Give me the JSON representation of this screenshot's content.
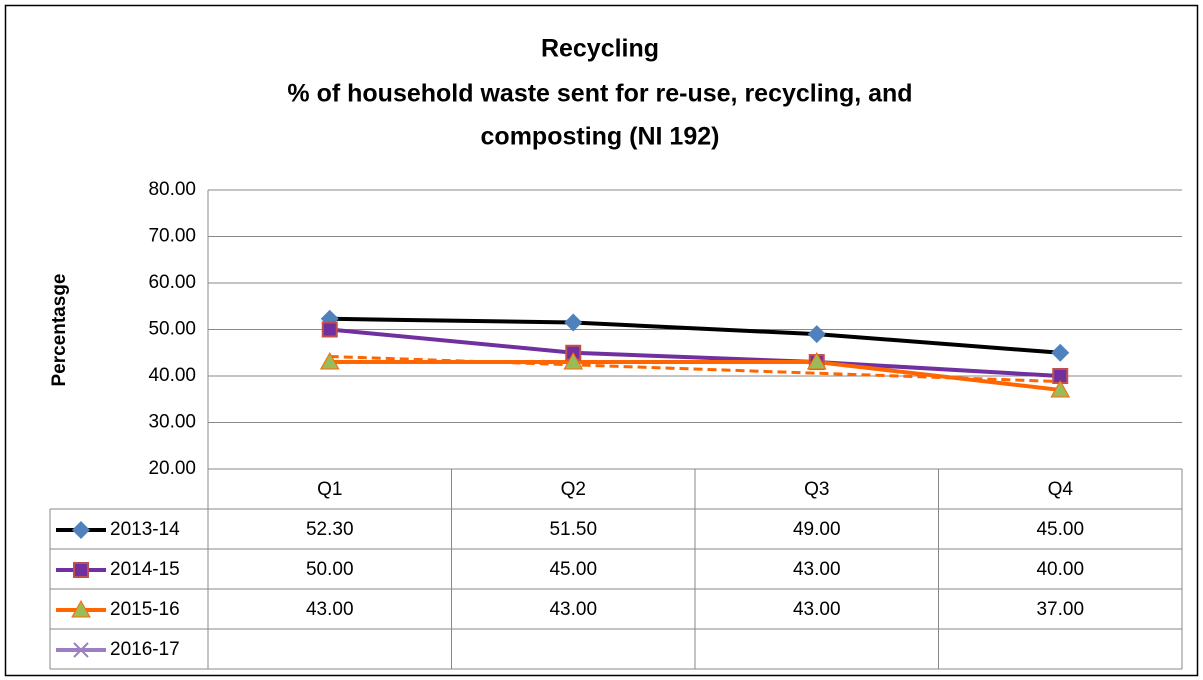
{
  "chart_data": {
    "type": "line",
    "title": [
      "Recycling",
      "% of household waste sent for re-use, recycling, and",
      "composting  (NI 192)"
    ],
    "y_label": "Percentasge",
    "categories": [
      "Q1",
      "Q2",
      "Q3",
      "Q4"
    ],
    "series": [
      {
        "name": "2013-14",
        "color": "#000000",
        "marker": "diamond",
        "marker_color": "#4f81bd",
        "values": [
          52.3,
          51.5,
          49,
          45
        ],
        "value_labels": [
          "52.30",
          "51.50",
          "49.00",
          "45.00"
        ]
      },
      {
        "name": "2014-15",
        "color": "#7030a0",
        "marker": "square",
        "marker_color": "#7030a0",
        "values": [
          50,
          45,
          43,
          40
        ],
        "value_labels": [
          "50.00",
          "45.00",
          "43.00",
          "40.00"
        ]
      },
      {
        "name": "2015-16",
        "color": "#ff6600",
        "marker": "triangle",
        "marker_color": "#9bbb59",
        "trendline": "linear",
        "values": [
          43,
          43,
          43,
          37
        ],
        "value_labels": [
          "43.00",
          "43.00",
          "43.00",
          "37.00"
        ]
      },
      {
        "name": "2016-17",
        "color": "#9b7fc0",
        "marker": "x",
        "marker_color": "#9b7fc0",
        "values": [
          null,
          null,
          null,
          null
        ]
      }
    ],
    "ylim": [
      20,
      80
    ],
    "yticks": [
      {
        "value": 20,
        "label": "20.00"
      },
      {
        "value": 30,
        "label": "30.00"
      },
      {
        "value": 40,
        "label": "40.00"
      },
      {
        "value": 50,
        "label": "50.00"
      },
      {
        "value": 60,
        "label": "60.00"
      },
      {
        "value": 70,
        "label": "70.00"
      },
      {
        "value": 80,
        "label": "80.00"
      }
    ],
    "grid": true,
    "data_table": true
  }
}
